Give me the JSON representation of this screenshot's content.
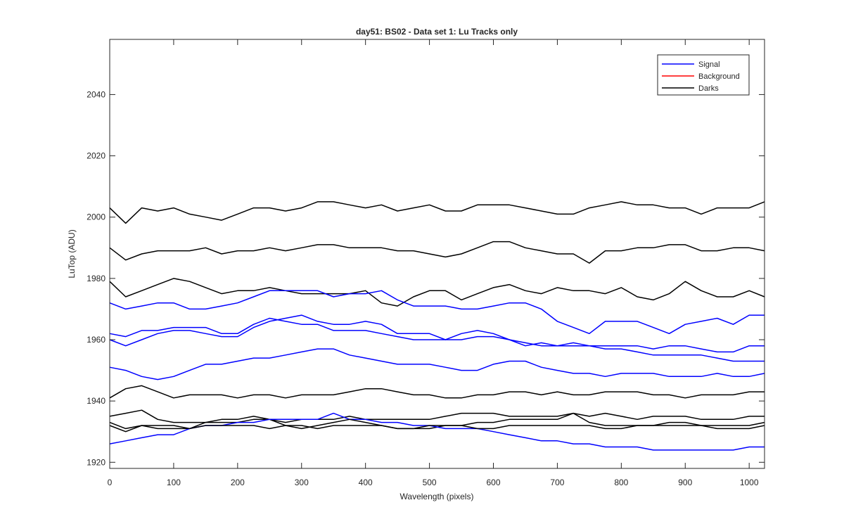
{
  "chart_data": {
    "type": "line",
    "title": "day51: BS02 - Data set 1: Lu Tracks only",
    "xlabel": "Wavelength (pixels)",
    "ylabel": "LuTop (ADU)",
    "xlim": [
      0,
      1024
    ],
    "ylim": [
      1918,
      2058
    ],
    "x_ticks": [
      0,
      100,
      200,
      300,
      400,
      500,
      600,
      700,
      800,
      900,
      1000
    ],
    "y_ticks": [
      1920,
      1940,
      1960,
      1980,
      2000,
      2020,
      2040
    ],
    "grid": false,
    "legend_position": "top-right",
    "legend": [
      {
        "label": "Signal",
        "color": "#0000ff"
      },
      {
        "label": "Background",
        "color": "#ff0000"
      },
      {
        "label": "Darks",
        "color": "#000000"
      }
    ],
    "x": [
      0,
      25,
      50,
      75,
      100,
      125,
      150,
      175,
      200,
      225,
      250,
      275,
      300,
      325,
      350,
      375,
      400,
      425,
      450,
      475,
      500,
      525,
      550,
      575,
      600,
      625,
      650,
      675,
      700,
      725,
      750,
      775,
      800,
      825,
      850,
      875,
      900,
      925,
      950,
      975,
      1000,
      1024
    ],
    "series": [
      {
        "group": "Darks",
        "color": "#000000",
        "values": [
          2003,
          1998,
          2003,
          2002,
          2003,
          2001,
          2000,
          1999,
          2001,
          2003,
          2003,
          2002,
          2003,
          2005,
          2005,
          2004,
          2003,
          2004,
          2002,
          2003,
          2004,
          2002,
          2002,
          2004,
          2004,
          2004,
          2003,
          2002,
          2001,
          2001,
          2003,
          2004,
          2005,
          2004,
          2004,
          2003,
          2003,
          2001,
          2003,
          2003,
          2003,
          2005
        ]
      },
      {
        "group": "Darks",
        "color": "#000000",
        "values": [
          1990,
          1986,
          1988,
          1989,
          1989,
          1989,
          1990,
          1988,
          1989,
          1989,
          1990,
          1989,
          1990,
          1991,
          1991,
          1990,
          1990,
          1990,
          1989,
          1989,
          1988,
          1987,
          1988,
          1990,
          1992,
          1992,
          1990,
          1989,
          1988,
          1988,
          1985,
          1989,
          1989,
          1990,
          1990,
          1991,
          1991,
          1989,
          1989,
          1990,
          1990,
          1989
        ]
      },
      {
        "group": "Darks",
        "color": "#000000",
        "values": [
          1979,
          1974,
          1976,
          1978,
          1980,
          1979,
          1977,
          1975,
          1976,
          1976,
          1977,
          1976,
          1975,
          1975,
          1975,
          1975,
          1976,
          1972,
          1971,
          1974,
          1976,
          1976,
          1973,
          1975,
          1977,
          1978,
          1976,
          1975,
          1977,
          1976,
          1976,
          1975,
          1977,
          1974,
          1973,
          1975,
          1979,
          1976,
          1974,
          1974,
          1976,
          1974
        ]
      },
      {
        "group": "Signal",
        "color": "#0000ff",
        "values": [
          1972,
          1970,
          1971,
          1972,
          1972,
          1970,
          1970,
          1971,
          1972,
          1974,
          1976,
          1976,
          1976,
          1976,
          1974,
          1975,
          1975,
          1976,
          1973,
          1971,
          1971,
          1971,
          1970,
          1970,
          1971,
          1972,
          1972,
          1970,
          1966,
          1964,
          1962,
          1966,
          1966,
          1966,
          1964,
          1962,
          1965,
          1966,
          1967,
          1965,
          1968,
          1968
        ]
      },
      {
        "group": "Signal",
        "color": "#0000ff",
        "values": [
          1962,
          1961,
          1963,
          1963,
          1964,
          1964,
          1964,
          1962,
          1962,
          1965,
          1967,
          1966,
          1965,
          1965,
          1963,
          1963,
          1963,
          1962,
          1961,
          1960,
          1960,
          1960,
          1960,
          1961,
          1961,
          1960,
          1959,
          1958,
          1958,
          1959,
          1958,
          1958,
          1958,
          1958,
          1957,
          1958,
          1958,
          1957,
          1956,
          1956,
          1958,
          1958
        ]
      },
      {
        "group": "Signal",
        "color": "#0000ff",
        "values": [
          1960,
          1958,
          1960,
          1962,
          1963,
          1963,
          1962,
          1961,
          1961,
          1964,
          1966,
          1967,
          1968,
          1966,
          1965,
          1965,
          1966,
          1965,
          1962,
          1962,
          1962,
          1960,
          1962,
          1963,
          1962,
          1960,
          1958,
          1959,
          1958,
          1958,
          1958,
          1957,
          1957,
          1956,
          1955,
          1955,
          1955,
          1955,
          1954,
          1953,
          1953,
          1953
        ]
      },
      {
        "group": "Signal",
        "color": "#0000ff",
        "values": [
          1951,
          1950,
          1948,
          1947,
          1948,
          1950,
          1952,
          1952,
          1953,
          1954,
          1954,
          1955,
          1956,
          1957,
          1957,
          1955,
          1954,
          1953,
          1952,
          1952,
          1952,
          1951,
          1950,
          1950,
          1952,
          1953,
          1953,
          1951,
          1950,
          1949,
          1949,
          1948,
          1949,
          1949,
          1949,
          1948,
          1948,
          1948,
          1949,
          1948,
          1948,
          1949
        ]
      },
      {
        "group": "Darks",
        "color": "#000000",
        "values": [
          1941,
          1944,
          1945,
          1943,
          1941,
          1942,
          1942,
          1942,
          1941,
          1942,
          1942,
          1941,
          1942,
          1942,
          1942,
          1943,
          1944,
          1944,
          1943,
          1942,
          1942,
          1941,
          1941,
          1942,
          1942,
          1943,
          1943,
          1942,
          1943,
          1942,
          1942,
          1943,
          1943,
          1943,
          1942,
          1942,
          1941,
          1942,
          1942,
          1942,
          1943,
          1943
        ]
      },
      {
        "group": "Darks",
        "color": "#000000",
        "values": [
          1935,
          1936,
          1937,
          1934,
          1933,
          1933,
          1933,
          1933,
          1933,
          1934,
          1934,
          1933,
          1934,
          1934,
          1934,
          1935,
          1934,
          1934,
          1934,
          1934,
          1934,
          1935,
          1936,
          1936,
          1936,
          1935,
          1935,
          1935,
          1935,
          1936,
          1935,
          1936,
          1935,
          1934,
          1935,
          1935,
          1935,
          1934,
          1934,
          1934,
          1935,
          1935
        ]
      },
      {
        "group": "Darks",
        "color": "#000000",
        "values": [
          1932,
          1930,
          1932,
          1931,
          1931,
          1931,
          1933,
          1934,
          1934,
          1935,
          1934,
          1932,
          1932,
          1931,
          1932,
          1932,
          1932,
          1932,
          1931,
          1931,
          1931,
          1932,
          1932,
          1933,
          1933,
          1934,
          1934,
          1934,
          1934,
          1936,
          1933,
          1932,
          1932,
          1932,
          1932,
          1933,
          1933,
          1932,
          1932,
          1932,
          1932,
          1933
        ]
      },
      {
        "group": "Signal",
        "color": "#0000ff",
        "values": [
          1926,
          1927,
          1928,
          1929,
          1929,
          1931,
          1932,
          1932,
          1933,
          1933,
          1934,
          1934,
          1934,
          1934,
          1936,
          1934,
          1934,
          1933,
          1933,
          1932,
          1932,
          1931,
          1931,
          1931,
          1930,
          1929,
          1928,
          1927,
          1927,
          1926,
          1926,
          1925,
          1925,
          1925,
          1924,
          1924,
          1924,
          1924,
          1924,
          1924,
          1925,
          1925
        ]
      },
      {
        "group": "Darks",
        "color": "#000000",
        "values": [
          1933,
          1931,
          1932,
          1932,
          1932,
          1931,
          1932,
          1932,
          1932,
          1932,
          1931,
          1932,
          1931,
          1932,
          1933,
          1934,
          1933,
          1932,
          1931,
          1931,
          1932,
          1932,
          1932,
          1931,
          1931,
          1932,
          1932,
          1932,
          1932,
          1932,
          1932,
          1931,
          1931,
          1932,
          1932,
          1932,
          1932,
          1932,
          1931,
          1931,
          1931,
          1932
        ]
      }
    ]
  }
}
